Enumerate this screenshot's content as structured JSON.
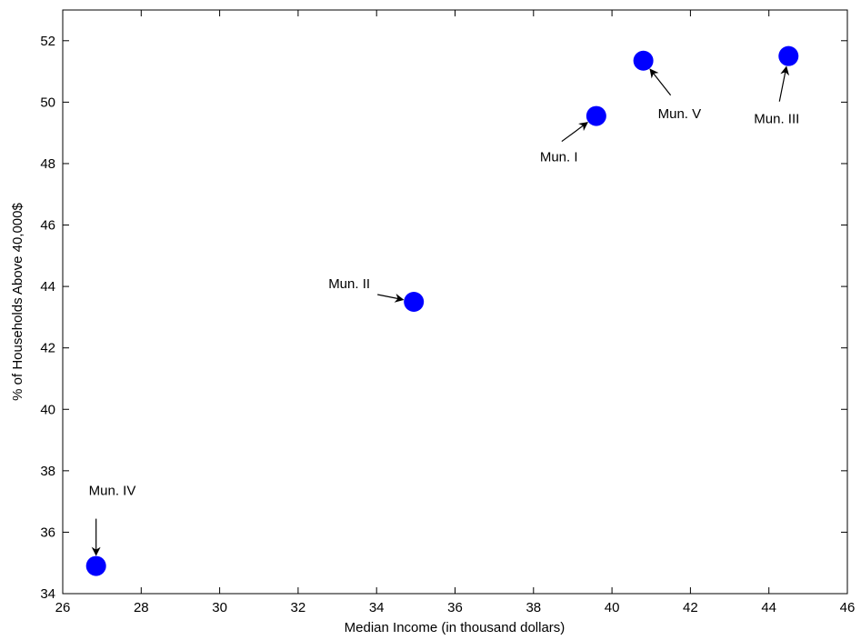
{
  "chart_data": {
    "type": "scatter",
    "xlabel": "Median Income (in thousand dollars)",
    "ylabel": "% of Households Above 40,000$",
    "xlim": [
      26,
      46
    ],
    "ylim": [
      34,
      53
    ],
    "xticks": [
      26,
      28,
      30,
      32,
      34,
      36,
      38,
      40,
      42,
      44,
      46
    ],
    "yticks": [
      34,
      36,
      38,
      40,
      42,
      44,
      46,
      48,
      50,
      52
    ],
    "grid": false,
    "marker_color": "#0000ff",
    "points": [
      {
        "label": "Mun. I",
        "x": 39.6,
        "y": 49.55
      },
      {
        "label": "Mun. II",
        "x": 34.95,
        "y": 43.5
      },
      {
        "label": "Mun. III",
        "x": 44.5,
        "y": 51.5
      },
      {
        "label": "Mun. IV",
        "x": 26.85,
        "y": 34.9
      },
      {
        "label": "Mun. V",
        "x": 40.8,
        "y": 51.35
      }
    ]
  }
}
